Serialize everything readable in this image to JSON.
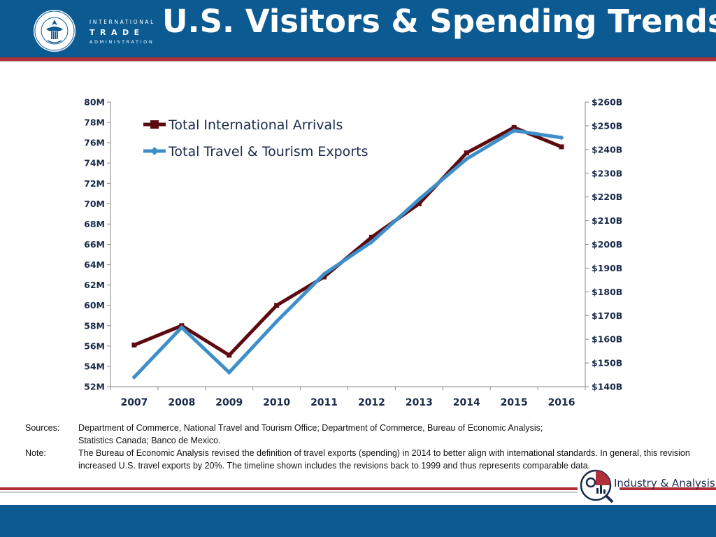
{
  "header": {
    "org_line1": "INTERNATIONAL",
    "org_line2": "TRADE",
    "org_line3": "ADMINISTRATION",
    "title": "U.S. Visitors & Spending Trends"
  },
  "colors": {
    "header_blue": "#0b5a92",
    "accent_red": "#b0303a",
    "arrivals": "#5c0a10",
    "exports": "#3e8fc9"
  },
  "icons": {
    "seal": "department-of-commerce-seal-icon",
    "industry_analysis": "industry-analysis-logo-icon"
  },
  "chart_data": {
    "type": "line",
    "title": "",
    "categories": [
      "2007",
      "2008",
      "2009",
      "2010",
      "2011",
      "2012",
      "2013",
      "2014",
      "2015",
      "2016"
    ],
    "left_axis": {
      "ylim": [
        52,
        80
      ],
      "tick_labels": [
        "52M",
        "54M",
        "56M",
        "58M",
        "60M",
        "62M",
        "64M",
        "66M",
        "68M",
        "70M",
        "72M",
        "74M",
        "76M",
        "78M",
        "80M"
      ]
    },
    "right_axis": {
      "ylim": [
        140,
        260
      ],
      "tick_labels": [
        "$140B",
        "$150B",
        "$160B",
        "$170B",
        "$180B",
        "$190B",
        "$200B",
        "$210B",
        "$220B",
        "$230B",
        "$240B",
        "$250B",
        "$260B"
      ]
    },
    "series": [
      {
        "name": "Total International Arrivals",
        "axis": "left",
        "values": [
          56.1,
          58.0,
          55.1,
          60.0,
          62.8,
          66.7,
          70.0,
          75.0,
          77.5,
          75.6
        ]
      },
      {
        "name": "Total Travel & Tourism Exports",
        "axis": "right",
        "values": [
          144.0,
          165.0,
          146.0,
          167.5,
          187.5,
          201.0,
          219.0,
          236.0,
          248.0,
          245.0
        ]
      }
    ],
    "grid": false,
    "legend_position": "top-left"
  },
  "notes": {
    "sources_label": "Sources:",
    "sources_text_line1": "Department of Commerce, National Travel and Tourism Office; Department of Commerce, Bureau of Economic Analysis;",
    "sources_text_line2": "Statistics Canada; Banco de Mexico.",
    "note_label": "Note:",
    "note_text": "The Bureau of Economic Analysis revised the definition of travel exports (spending) in 2014 to better align with international standards.  In general, this revision increased U.S. travel exports by 20%.  The timeline shown includes the revisions back to 1999 and thus represents comparable data."
  },
  "footer": {
    "brand": "Industry & Analysis"
  }
}
